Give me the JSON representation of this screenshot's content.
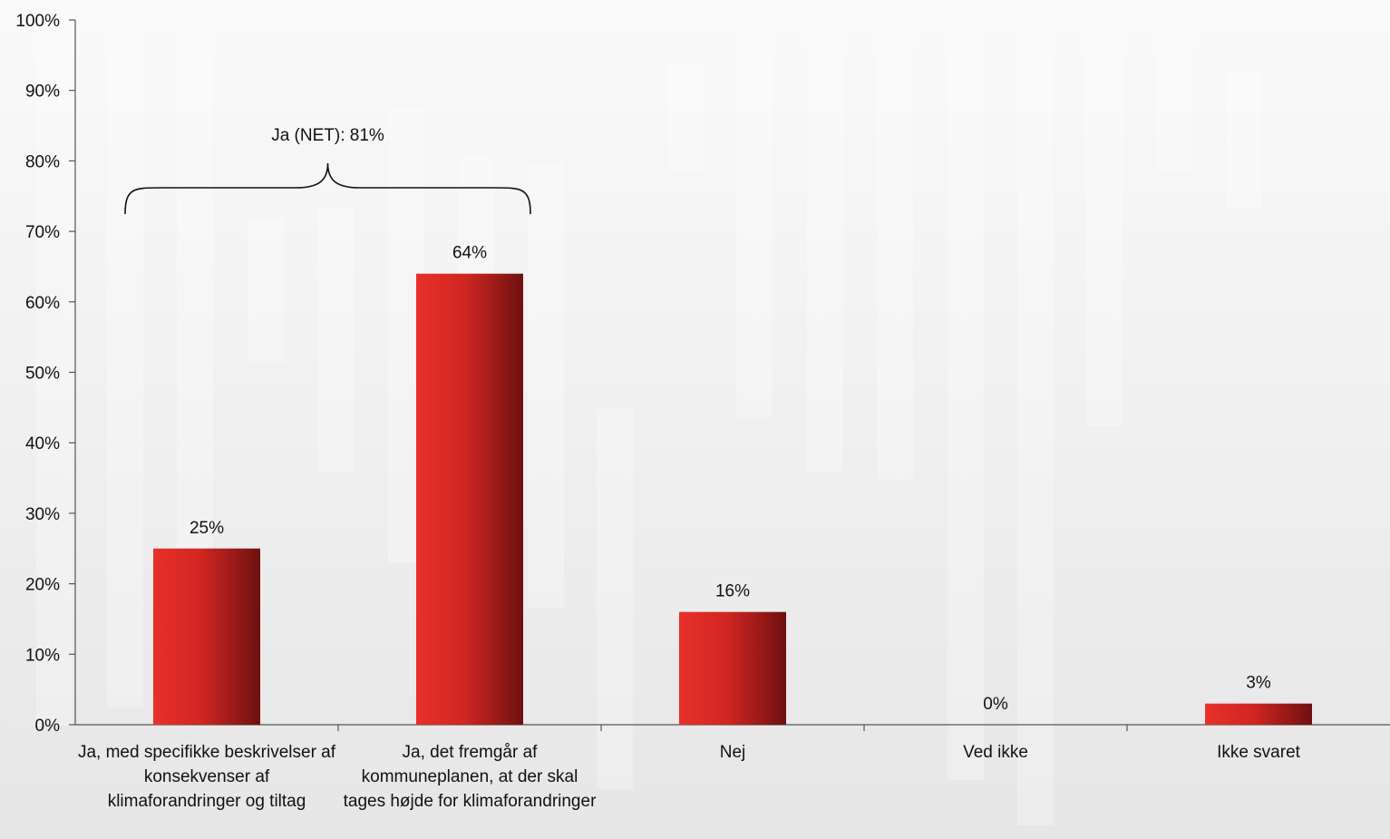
{
  "chart_data": {
    "type": "bar",
    "categories": [
      "Ja, med specifikke beskrivelser af konsekvenser af klimaforandringer og tiltag",
      "Ja, det fremgår af kommuneplanen, at der skal tages højde for klimaforandringer",
      "Nej",
      "Ved ikke",
      "Ikke svaret"
    ],
    "values": [
      25,
      64,
      16,
      0,
      3
    ],
    "data_labels": [
      "25%",
      "64%",
      "16%",
      "0%",
      "3%"
    ],
    "ylim": [
      0,
      100
    ],
    "yticks": [
      "0%",
      "10%",
      "20%",
      "30%",
      "40%",
      "50%",
      "60%",
      "70%",
      "80%",
      "90%",
      "100%"
    ],
    "grid": false,
    "legend": "none",
    "annotation": {
      "text": "Ja (NET): 81%",
      "spans_categories": [
        0,
        1
      ]
    },
    "colors": {
      "bar_light": "#e8302a",
      "bar_mid": "#d02622",
      "bar_dark": "#6e1010",
      "axis": "#555555"
    }
  }
}
